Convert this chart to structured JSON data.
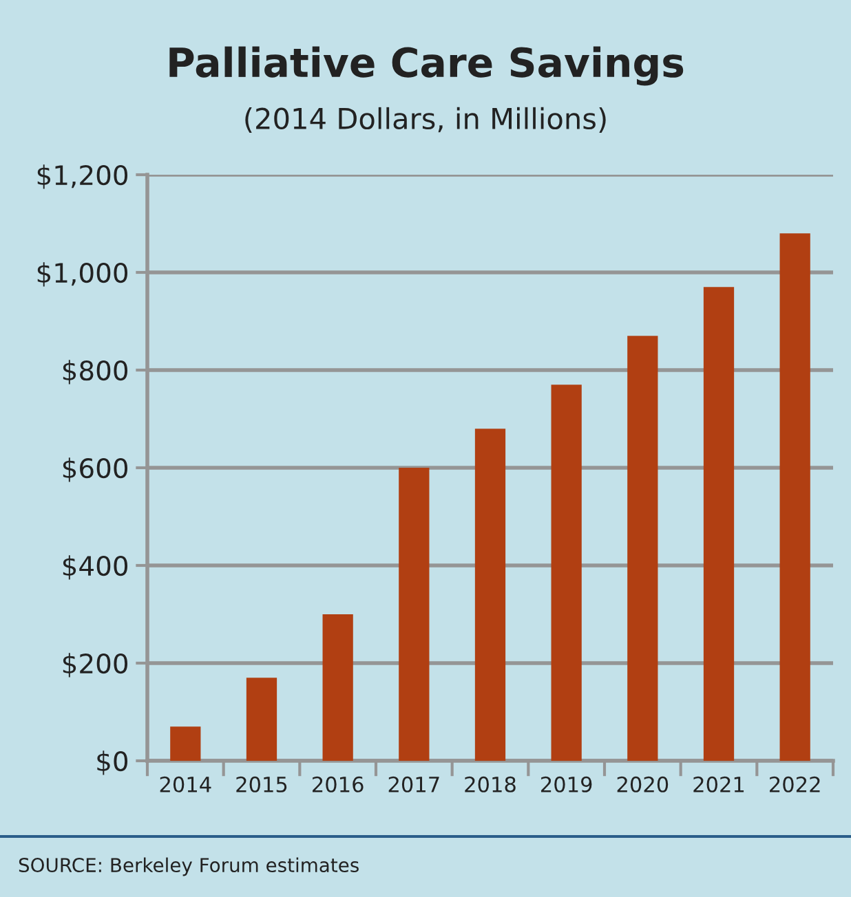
{
  "chart_data": {
    "type": "bar",
    "title": "Palliative Care Savings",
    "subtitle": "(2014 Dollars, in Millions)",
    "categories": [
      "2014",
      "2015",
      "2016",
      "2017",
      "2018",
      "2019",
      "2020",
      "2021",
      "2022"
    ],
    "values": [
      70,
      170,
      300,
      600,
      680,
      770,
      870,
      970,
      1080
    ],
    "color": "#b13f12",
    "ylim": [
      0,
      1200
    ],
    "yticks": [
      {
        "value": 0,
        "label": "$0"
      },
      {
        "value": 200,
        "label": "$200"
      },
      {
        "value": 400,
        "label": "$400"
      },
      {
        "value": 600,
        "label": "$600"
      },
      {
        "value": 800,
        "label": "$800"
      },
      {
        "value": 1000,
        "label": "$1,000"
      },
      {
        "value": 1200,
        "label": "$1,200"
      }
    ],
    "grid": "y",
    "annotations": [
      "SOURCE: Berkeley Forum estimates"
    ]
  }
}
